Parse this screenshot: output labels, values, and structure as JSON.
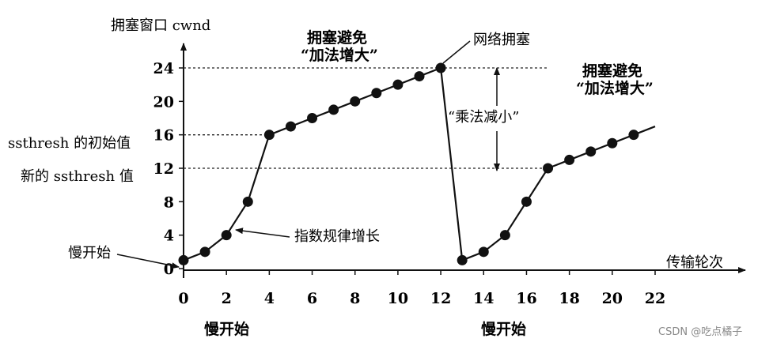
{
  "chart_data": {
    "type": "line",
    "title": "",
    "xlabel": "传输轮次",
    "ylabel": "拥塞窗口 cwnd",
    "xlim": [
      0,
      22
    ],
    "ylim": [
      0,
      24
    ],
    "x_ticks": [
      "0",
      "2",
      "4",
      "6",
      "8",
      "10",
      "12",
      "14",
      "16",
      "18",
      "20",
      "22"
    ],
    "y_ticks": [
      "0",
      "4",
      "8",
      "12",
      "16",
      "20",
      "24"
    ],
    "series": [
      {
        "x": [
          0,
          1,
          2,
          3,
          4,
          5,
          6,
          7,
          8,
          9,
          10,
          11,
          12
        ],
        "values": [
          1,
          2,
          4,
          8,
          16,
          17,
          18,
          19,
          20,
          21,
          22,
          23,
          24
        ]
      },
      {
        "x": [
          13,
          14,
          15,
          16,
          17,
          18,
          19,
          20,
          21
        ],
        "values": [
          1,
          2,
          4,
          8,
          12,
          13,
          14,
          15,
          16
        ]
      }
    ],
    "trailing_segment": {
      "x": [
        21,
        22
      ],
      "values": [
        16,
        17
      ]
    },
    "drop_segment": {
      "x": [
        12,
        13
      ],
      "values": [
        24,
        1
      ]
    },
    "reference_lines": [
      {
        "y": 24,
        "x_end": 17
      },
      {
        "y": 16,
        "x_end": 4
      },
      {
        "y": 12,
        "x_end": 17
      }
    ],
    "annotations": {
      "ssthresh_initial": "ssthresh 的初始值",
      "ssthresh_new": "新的 ssthresh 值",
      "slow_start": "慢开始",
      "exponential": "指数规律增长",
      "congestion_avoid_1_line1": "拥塞避免",
      "congestion_avoid_1_line2": "“加法增大”",
      "network_congestion": "网络拥塞",
      "multiplicative_decrease": "“乘法减小”",
      "congestion_avoid_2_line1": "拥塞避免",
      "congestion_avoid_2_line2": "“加法增大”",
      "slow_start_bottom_1": "慢开始",
      "slow_start_bottom_2": "慢开始"
    },
    "grid": false,
    "legend": "none"
  },
  "watermark": "CSDN @吃点橘子"
}
